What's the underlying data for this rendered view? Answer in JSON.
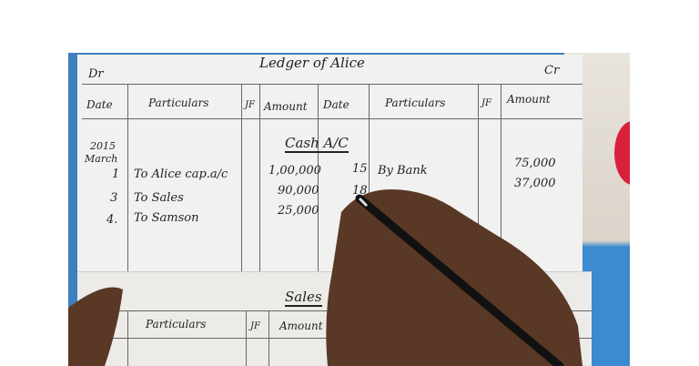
{
  "ledger": {
    "title": "Ledger of Alice",
    "dr": "Dr",
    "cr": "Cr",
    "headers": [
      "Date",
      "Particulars",
      "JF",
      "Amount",
      "Date",
      "Particulars",
      "JF",
      "Amount"
    ],
    "account": "Cash A/C",
    "year": "2015",
    "month": "March",
    "debit_rows": [
      {
        "date": "1",
        "particulars": "To Alice cap.a/c",
        "amount": "1,00,000"
      },
      {
        "date": "3",
        "particulars": "To Sales",
        "amount": "90,000"
      },
      {
        "date": "4.",
        "particulars": "To Samson",
        "amount": "25,000"
      }
    ],
    "credit_rows": [
      {
        "date": "15",
        "particulars": "By Bank",
        "amount": "75,000"
      },
      {
        "date": "18",
        "particulars": "",
        "amount": "37,000"
      }
    ]
  },
  "sheet2": {
    "account": "Sales",
    "headers": [
      "Particulars",
      "JF",
      "Amount"
    ]
  },
  "colors": {
    "paper": "#f1f1ef",
    "ink": "#222222",
    "skin": "#5a3826",
    "cloth_blue": "#3d7fc0",
    "cloth_red": "#d8203c"
  }
}
